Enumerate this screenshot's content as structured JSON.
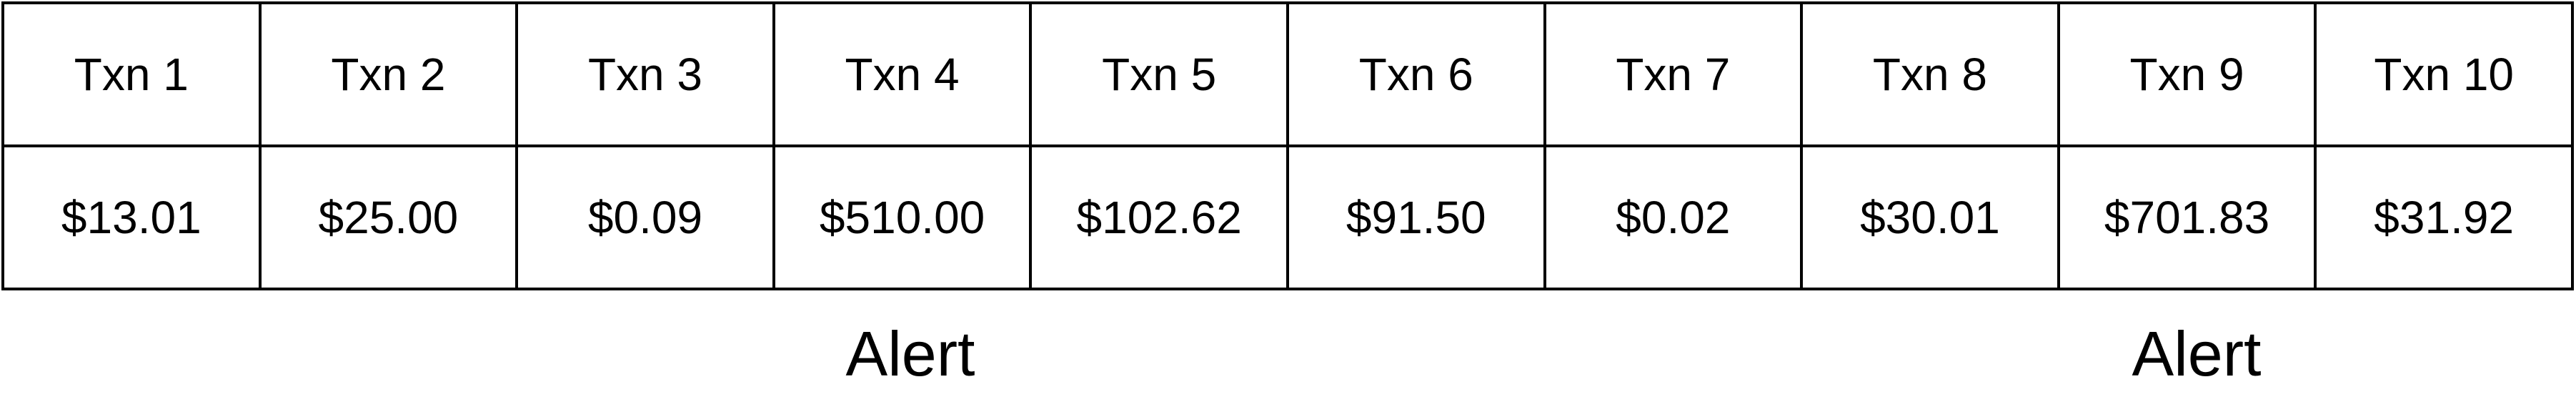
{
  "transactions": [
    {
      "label": "Txn 1",
      "amount": "$13.01"
    },
    {
      "label": "Txn 2",
      "amount": "$25.00"
    },
    {
      "label": "Txn 3",
      "amount": "$0.09"
    },
    {
      "label": "Txn 4",
      "amount": "$510.00"
    },
    {
      "label": "Txn 5",
      "amount": "$102.62"
    },
    {
      "label": "Txn 6",
      "amount": "$91.50"
    },
    {
      "label": "Txn 7",
      "amount": "$0.02"
    },
    {
      "label": "Txn 8",
      "amount": "$30.01"
    },
    {
      "label": "Txn 9",
      "amount": "$701.83"
    },
    {
      "label": "Txn 10",
      "amount": "$31.92"
    }
  ],
  "alerts": [
    {
      "label": "Alert"
    },
    {
      "label": "Alert"
    }
  ]
}
